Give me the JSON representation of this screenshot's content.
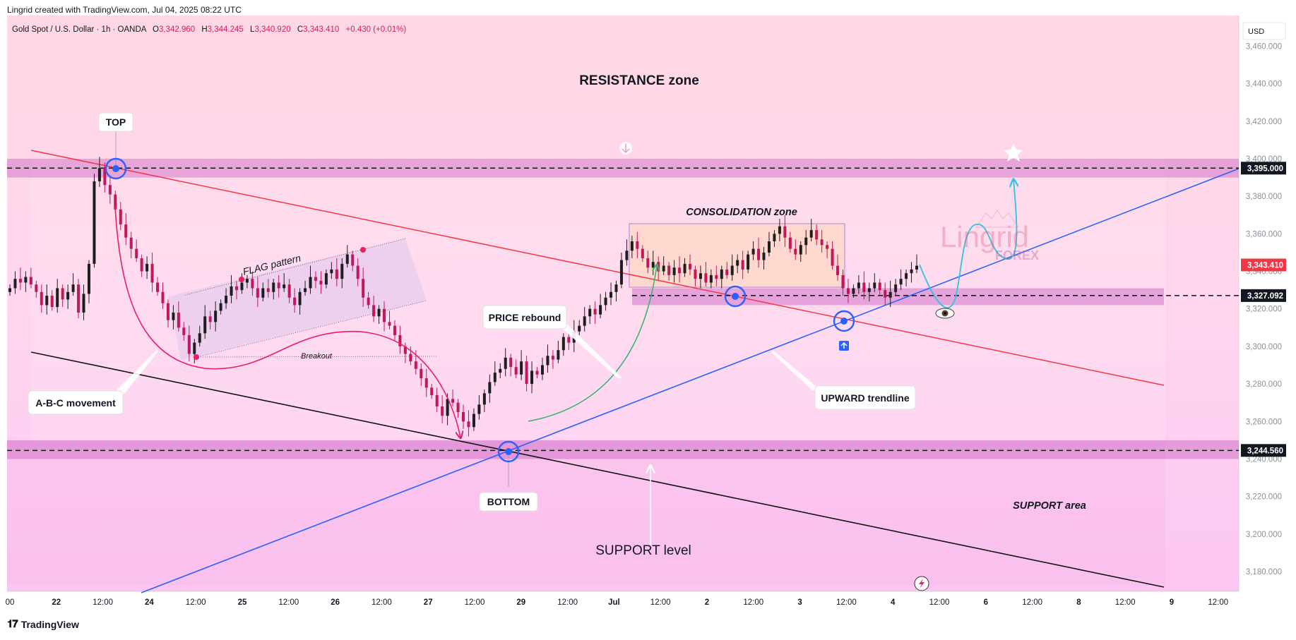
{
  "header": {
    "attribution": "Lingrid created with TradingView.com, Jul 04, 2025 08:22 UTC",
    "symbol": "Gold Spot / U.S. Dollar · 1h · OANDA",
    "ohlc": {
      "open_label": "O",
      "open": "3,342.960",
      "high_label": "H",
      "high": "3,344.245",
      "low_label": "L",
      "low": "3,340.920",
      "close_label": "C",
      "close": "3,343.410",
      "change": "+0.430 (+0.01%)"
    }
  },
  "currency": "USD",
  "footer": {
    "brand": "TradingView",
    "logo_glyph": "𝟏𝟕"
  },
  "watermark": {
    "line1": "Lingrid",
    "line2": "FOREX"
  },
  "colors": {
    "resistance_trend": "#f23645",
    "support_trend": "#000000",
    "upward_trend": "#2962ff",
    "zone": "#c85fc0",
    "price_badge": "#f23645",
    "projection": "#2ec4e0",
    "abc_arrow": "#e91e63",
    "rebound_arrow": "#3cb371"
  },
  "chart_data": {
    "type": "candlestick",
    "title": "Gold Spot / U.S. Dollar · 1h · OANDA",
    "ylabel": "USD",
    "ylim": [
      3170,
      3468
    ],
    "y_ticks": [
      "3,460.000",
      "3,440.000",
      "3,420.000",
      "3,400.000",
      "3,380.000",
      "3,360.000",
      "3,340.000",
      "3,320.000",
      "3,300.000",
      "3,280.000",
      "3,260.000",
      "3,240.000",
      "3,220.000",
      "3,200.000",
      "3,180.000"
    ],
    "y_tick_values": [
      3460,
      3440,
      3420,
      3400,
      3380,
      3360,
      3340,
      3320,
      3300,
      3280,
      3260,
      3240,
      3220,
      3200,
      3180
    ],
    "x_ticks": [
      "00",
      "22",
      "12:00",
      "24",
      "12:00",
      "25",
      "12:00",
      "26",
      "12:00",
      "27",
      "12:00",
      "29",
      "12:00",
      "Jul",
      "12:00",
      "2",
      "12:00",
      "3",
      "12:00",
      "4",
      "12:00",
      "6",
      "12:00",
      "8",
      "12:00",
      "9",
      "12:00"
    ],
    "x_ticks_bold": [
      "22",
      "24",
      "25",
      "26",
      "27",
      "29",
      "Jul",
      "2",
      "3",
      "4",
      "6",
      "8",
      "9"
    ],
    "price_levels": [
      {
        "label": "3,395.000",
        "value": 3395.0,
        "style": "dark"
      },
      {
        "label": "3,343.410",
        "value": 3343.41,
        "style": "red"
      },
      {
        "label": "3,327.092",
        "value": 3327.092,
        "style": "dark"
      },
      {
        "label": "3,244.560",
        "value": 3244.56,
        "style": "dark"
      }
    ],
    "zones": [
      {
        "name": "resistance-band",
        "from": 3390,
        "to": 3400
      },
      {
        "name": "support-band",
        "from": 3240,
        "to": 3250
      },
      {
        "name": "retest-band",
        "from": 3322,
        "to": 3331
      }
    ],
    "annotations": {
      "resistance_zone": "RESISTANCE zone",
      "consolidation_zone": "CONSOLIDATION zone",
      "flag_pattern": "FLAG pattern",
      "breakout": "Breakout",
      "top": "TOP",
      "bottom": "BOTTOM",
      "price_rebound": "PRICE rebound",
      "abc_movement": "A-B-C movement",
      "upward_trendline": "UPWARD trendline",
      "support_area": "SUPPORT area",
      "support_level": "SUPPORT level"
    },
    "series": [
      {
        "name": "XAUUSD 1h close",
        "values": [
          3331,
          3336,
          3334,
          3337,
          3333,
          3329,
          3322,
          3327,
          3321,
          3331,
          3325,
          3329,
          3333,
          3318,
          3328,
          3344,
          3388,
          3395,
          3386,
          3381,
          3373,
          3365,
          3358,
          3352,
          3347,
          3340,
          3344,
          3334,
          3329,
          3323,
          3314,
          3318,
          3310,
          3306,
          3296,
          3302,
          3307,
          3316,
          3313,
          3319,
          3323,
          3327,
          3332,
          3330,
          3334,
          3336,
          3331,
          3326,
          3331,
          3329,
          3334,
          3331,
          3333,
          3326,
          3322,
          3329,
          3331,
          3337,
          3335,
          3333,
          3339,
          3341,
          3336,
          3344,
          3349,
          3343,
          3336,
          3326,
          3322,
          3316,
          3320,
          3313,
          3311,
          3306,
          3300,
          3296,
          3292,
          3288,
          3283,
          3278,
          3274,
          3268,
          3263,
          3272,
          3270,
          3265,
          3260,
          3257,
          3264,
          3269,
          3275,
          3281,
          3286,
          3288,
          3294,
          3289,
          3285,
          3292,
          3280,
          3287,
          3285,
          3290,
          3295,
          3293,
          3298,
          3305,
          3302,
          3308,
          3311,
          3316,
          3320,
          3317,
          3322,
          3326,
          3329,
          3333,
          3346,
          3351,
          3356,
          3352,
          3347,
          3342,
          3345,
          3340,
          3343,
          3338,
          3342,
          3339,
          3344,
          3341,
          3336,
          3339,
          3334,
          3338,
          3336,
          3341,
          3338,
          3343,
          3346,
          3341,
          3349,
          3352,
          3346,
          3350,
          3356,
          3360,
          3364,
          3358,
          3352,
          3349,
          3354,
          3358,
          3362,
          3357,
          3354,
          3352,
          3343,
          3338,
          3331,
          3328,
          3331,
          3334,
          3329,
          3331,
          3334,
          3330,
          3326,
          3329,
          3333,
          3336,
          3339,
          3341,
          3343
        ]
      }
    ]
  }
}
